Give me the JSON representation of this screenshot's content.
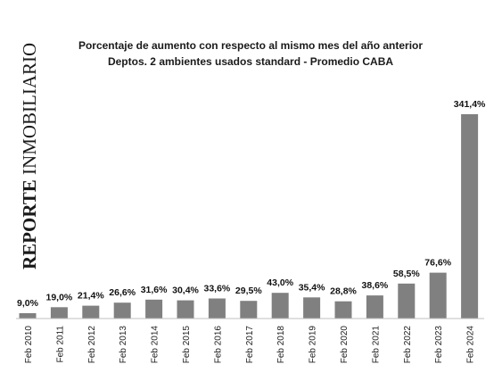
{
  "watermark": {
    "bold": "REPORTE",
    "rest": " INMOBILIARIO"
  },
  "chart_data": {
    "type": "bar",
    "title": "Porcentaje de aumento con respecto al mismo mes del año anterior",
    "subtitle": "Deptos. 2 ambientes usados standard - Promedio CABA",
    "categories": [
      "Feb 2010",
      "Feb 2011",
      "Feb 2012",
      "Feb 2013",
      "Feb 2014",
      "Feb 2015",
      "Feb 2016",
      "Feb 2017",
      "Feb 2018",
      "Feb 2019",
      "Feb 2020",
      "Feb 2021",
      "Feb 2022",
      "Feb 2023",
      "Feb 2024"
    ],
    "values": [
      9.0,
      19.0,
      21.4,
      26.6,
      31.6,
      30.4,
      33.6,
      29.5,
      43.0,
      35.4,
      28.8,
      38.6,
      58.5,
      76.6,
      341.4
    ],
    "labels": [
      "9,0%",
      "19,0%",
      "21,4%",
      "26,6%",
      "31,6%",
      "30,4%",
      "33,6%",
      "29,5%",
      "43,0%",
      "35,4%",
      "28,8%",
      "38,6%",
      "58,5%",
      "76,6%",
      "341,4%"
    ],
    "ylim": [
      0,
      341.4
    ],
    "bar_color": "#808080",
    "axis_color": "#bfbfbf",
    "grid": false,
    "legend": "none"
  }
}
